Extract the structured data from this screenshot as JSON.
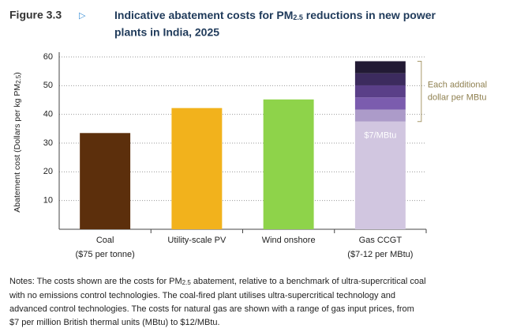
{
  "chart_data": {
    "type": "stacked_bar",
    "figure_label": "Figure 3.3",
    "figure_marker": "▷",
    "title_parts": [
      "Indicative abatement costs for PM",
      "2.5",
      " reductions in new power"
    ],
    "title_line2": "plants in India, 2025",
    "y_label_parts": [
      "Abatement cost (Dollars per kg PM",
      "2.5",
      ")"
    ],
    "categories": [
      "Coal",
      "Utility-scale PV",
      "Wind onshore",
      "Gas CCGT"
    ],
    "category_notes": [
      "($75 per tonne)",
      null,
      null,
      "($7-12 per MBtu)"
    ],
    "series": [
      {
        "colors": [
          "#5c2f0c",
          "#f2b21c",
          "#8ed34a",
          "#d1c6e0"
        ],
        "values": [
          33.5,
          42.2,
          45.2,
          37.5
        ],
        "inner_labels": [
          null,
          null,
          null,
          "$7/MBtu"
        ]
      },
      {
        "color": "#ac9bc9",
        "values": [
          null,
          null,
          null,
          4.2
        ]
      },
      {
        "color": "#7b5cae",
        "values": [
          null,
          null,
          null,
          4.2
        ]
      },
      {
        "color": "#5a3f88",
        "values": [
          null,
          null,
          null,
          4.2
        ]
      },
      {
        "color": "#3c2b5e",
        "values": [
          null,
          null,
          null,
          4.2
        ]
      },
      {
        "color": "#221a34",
        "values": [
          null,
          null,
          null,
          4.2
        ]
      }
    ],
    "annotation_lines": [
      "Each additional",
      "dollar per MBtu"
    ],
    "ylim": [
      0,
      60
    ],
    "yticks": [
      10,
      20,
      30,
      40,
      50,
      60
    ],
    "grid": true,
    "notes_parts": [
      "Notes: The costs shown are the costs for PM",
      "2.5",
      " abatement, relative to a benchmark of ultra-supercritical coal"
    ],
    "notes_lines": [
      "with no emissions control technologies. The coal-fired plant utilises ultra-supercritical technology and",
      "advanced control technologies. The costs for natural gas are shown with a range of gas input prices, from",
      "$7 per million British thermal units (MBtu) to $12/MBtu."
    ]
  }
}
